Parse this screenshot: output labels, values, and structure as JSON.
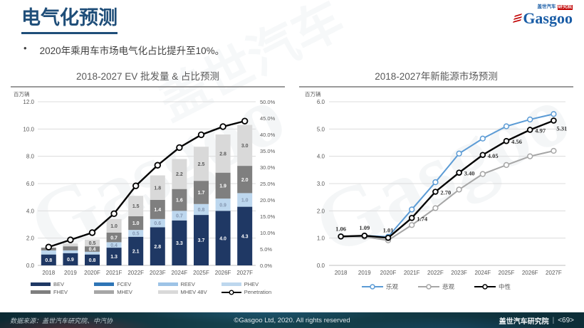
{
  "slide": {
    "title": "电气化预测",
    "bullet_marker": "•",
    "bullet": "2020年乘用车市场电气化占比提升至10%。",
    "accent_color": "#1F4E79"
  },
  "logo": {
    "brand": "Gasgoo",
    "tag1": "盖世汽车",
    "tag2": "研究院"
  },
  "watermark": {
    "brand": "Gasgoo",
    "cn": "盖世汽车"
  },
  "footer": {
    "source": "数据来源：盖世汽车研究院、中汽协",
    "copyright": "©Gasgoo Ltd, 2020. All rights reserved",
    "org": "盖世汽车研究院",
    "divider": "|",
    "page": "<69>"
  },
  "chart_data": [
    {
      "type": "bar",
      "title": "2018-2027 EV 批发量 & 占比预测",
      "unit_label": "百万辆",
      "categories": [
        "2018",
        "2019",
        "2020F",
        "2021F",
        "2022F",
        "2023F",
        "2024F",
        "2025F",
        "2026F",
        "2027F"
      ],
      "series": [
        {
          "name": "BEV",
          "color": "#1F3864",
          "label_color": "#FFFFFF",
          "values": [
            0.8,
            0.9,
            0.8,
            1.3,
            2.1,
            2.8,
            3.3,
            3.7,
            4.0,
            4.3
          ]
        },
        {
          "name": "PHEV",
          "color": "#BDD7EE",
          "label_color": "#8496B0",
          "values": [
            0.3,
            0.2,
            0.2,
            0.4,
            0.5,
            0.6,
            0.7,
            0.8,
            0.9,
            1.0
          ]
        },
        {
          "name": "FHEV",
          "color": "#7F7F7F",
          "label_color": "#FFFFFF",
          "values": [
            0.2,
            0.3,
            0.4,
            0.7,
            1.0,
            1.4,
            1.6,
            1.7,
            1.9,
            2.0
          ]
        },
        {
          "name": "MHEV 48V",
          "color": "#D9D9D9",
          "label_color": "#595959",
          "values": [
            0,
            0.2,
            0.5,
            1.0,
            1.5,
            1.8,
            2.2,
            2.5,
            2.8,
            3.0
          ]
        }
      ],
      "line_series": {
        "name": "Penetration",
        "color": "#000000",
        "axis": "right",
        "values": [
          5.6,
          7.8,
          10.0,
          15.8,
          24.3,
          30.6,
          36.0,
          39.9,
          42.4,
          44.1
        ]
      },
      "left_axis": {
        "min": 0,
        "max": 12,
        "step": 2
      },
      "right_axis": {
        "min": 0,
        "max": 50,
        "step": 5
      },
      "legend_rows": [
        [
          {
            "name": "BEV",
            "color": "#1F3864",
            "type": "swatch"
          },
          {
            "name": "FCEV",
            "color": "#2E75B6",
            "type": "swatch"
          },
          {
            "name": "REEV",
            "color": "#9DC3E6",
            "type": "swatch"
          },
          {
            "name": "PHEV",
            "color": "#BDD7EE",
            "type": "swatch"
          }
        ],
        [
          {
            "name": "FHEV",
            "color": "#7F7F7F",
            "type": "swatch"
          },
          {
            "name": "MHEV",
            "color": "#A6A6A6",
            "type": "swatch"
          },
          {
            "name": "MHEV 48V",
            "color": "#D9D9D9",
            "type": "swatch"
          },
          {
            "name": "Penetration",
            "color": "#000000",
            "type": "line-marker"
          }
        ]
      ]
    },
    {
      "type": "line",
      "title": "2018-2027年新能源市场预测",
      "unit_label": "百万辆",
      "categories": [
        "2018",
        "2019",
        "2020F",
        "2021F",
        "2022F",
        "2023F",
        "2024F",
        "2025F",
        "2026F",
        "2027F"
      ],
      "y_axis": {
        "min": 0,
        "max": 6,
        "step": 1
      },
      "series": [
        {
          "name": "悲观",
          "color": "#A6A6A6",
          "values": [
            1.06,
            1.05,
            0.92,
            1.48,
            2.1,
            2.78,
            3.35,
            3.68,
            4.0,
            4.2
          ]
        },
        {
          "name": "乐观",
          "color": "#5B9BD5",
          "values": [
            1.06,
            1.09,
            1.05,
            2.05,
            3.05,
            4.1,
            4.65,
            5.1,
            5.35,
            5.55
          ]
        },
        {
          "name": "中性",
          "color": "#000000",
          "values": [
            1.06,
            1.09,
            1.01,
            1.74,
            2.7,
            3.4,
            4.05,
            4.56,
            4.97,
            5.31
          ],
          "labels": [
            "1.06",
            "1.09",
            "1.01",
            "1.74",
            "2.70",
            "3.40",
            "4.05",
            "4.56",
            "4.97",
            "5.31"
          ]
        }
      ],
      "legend_order": [
        "乐观",
        "悲观",
        "中性"
      ]
    }
  ]
}
